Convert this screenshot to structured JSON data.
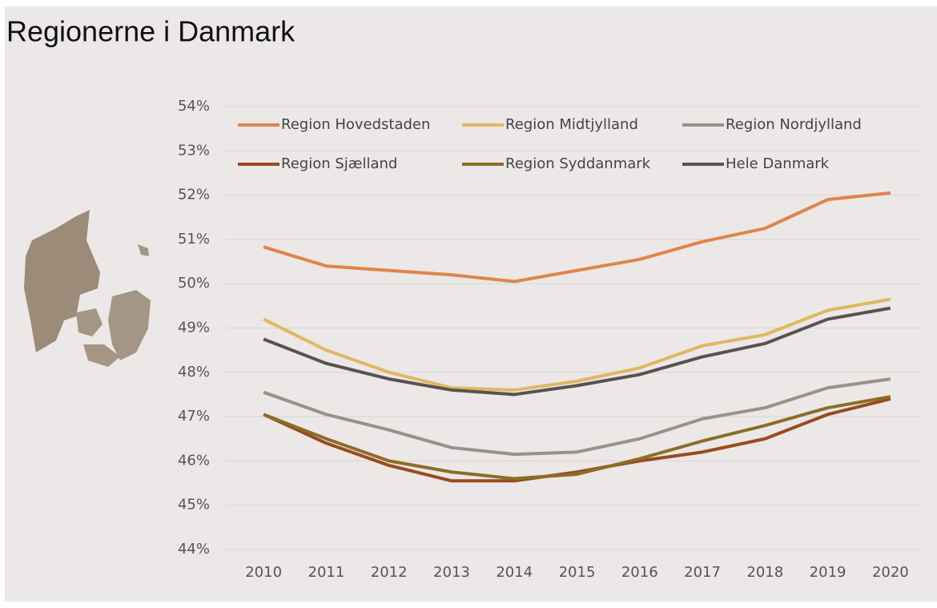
{
  "chart_data": {
    "type": "line",
    "title": "Regionerne i Danmark",
    "categories": [
      "2010",
      "2011",
      "2012",
      "2013",
      "2014",
      "2015",
      "2016",
      "2017",
      "2018",
      "2019",
      "2020"
    ],
    "series": [
      {
        "name": "Region Hovedstaden",
        "color": "#e0844a",
        "values": [
          50.83,
          50.4,
          50.3,
          50.2,
          50.05,
          50.3,
          50.55,
          50.95,
          51.25,
          51.9,
          52.05
        ]
      },
      {
        "name": "Region Midtjylland",
        "color": "#e0b860",
        "values": [
          49.2,
          48.5,
          48.0,
          47.65,
          47.6,
          47.8,
          48.1,
          48.6,
          48.85,
          49.4,
          49.65
        ]
      },
      {
        "name": "Region Nordjylland",
        "color": "#9a908c",
        "values": [
          47.55,
          47.05,
          46.7,
          46.3,
          46.15,
          46.2,
          46.5,
          46.95,
          47.2,
          47.65,
          47.85
        ]
      },
      {
        "name": "Region Sjælland",
        "color": "#9b4a1e",
        "values": [
          47.05,
          46.4,
          45.9,
          45.55,
          45.55,
          45.75,
          46.0,
          46.2,
          46.5,
          47.05,
          47.4
        ]
      },
      {
        "name": "Region Syddanmark",
        "color": "#8c6d28",
        "values": [
          47.05,
          46.5,
          46.0,
          45.75,
          45.6,
          45.7,
          46.05,
          46.45,
          46.8,
          47.2,
          47.45
        ]
      },
      {
        "name": "Hele Danmark",
        "color": "#5a5250",
        "values": [
          48.75,
          48.2,
          47.85,
          47.6,
          47.5,
          47.7,
          47.95,
          48.35,
          48.65,
          49.2,
          49.45
        ]
      }
    ],
    "ylim": [
      44,
      54
    ],
    "yticks": [
      {
        "value": 44,
        "label": "44%"
      },
      {
        "value": 45,
        "label": "45%"
      },
      {
        "value": 46,
        "label": "46%"
      },
      {
        "value": 47,
        "label": "47%"
      },
      {
        "value": 48,
        "label": "48%"
      },
      {
        "value": 49,
        "label": "49%"
      },
      {
        "value": 50,
        "label": "50%"
      },
      {
        "value": 51,
        "label": "51%"
      },
      {
        "value": 52,
        "label": "52%"
      },
      {
        "value": 53,
        "label": "53%"
      },
      {
        "value": 54,
        "label": "54%"
      }
    ],
    "grid": true,
    "legend": "top"
  }
}
